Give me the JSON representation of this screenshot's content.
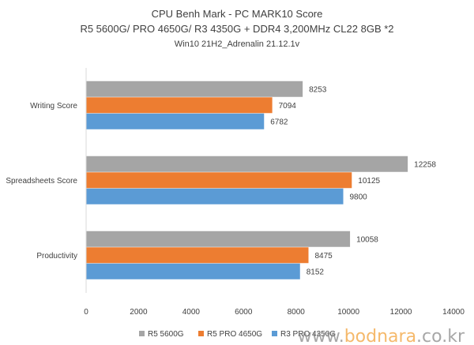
{
  "chart_data": {
    "type": "bar",
    "orientation": "horizontal",
    "title": "CPU Benh Mark - PC MARK10 Score",
    "subtitle": "R5 5600G/ PRO 4650G/ R3 4350G + DDR4 3,200MHz CL22 8GB *2",
    "subtitle2": "Win10 21H2_Adrenalin 21.12.1v",
    "categories": [
      "Writing Score",
      "Spreadsheets Score",
      "Productivity"
    ],
    "series": [
      {
        "name": "R5 5600G",
        "color": "#a5a5a5",
        "values": [
          8253,
          12258,
          10058
        ]
      },
      {
        "name": "R5 PRO 4650G",
        "color": "#ed7d31",
        "values": [
          7094,
          10125,
          8475
        ]
      },
      {
        "name": "R3 PRO 4350G",
        "color": "#5b9bd5",
        "values": [
          6782,
          9800,
          8152
        ]
      }
    ],
    "xlim": [
      0,
      14000
    ],
    "ticks": [
      0,
      2000,
      4000,
      6000,
      8000,
      10000,
      12000,
      14000
    ],
    "grid": false,
    "legend_position": "bottom"
  },
  "watermark": {
    "prefix": "www.",
    "brand": "bodnara",
    "suffix": ".co.kr"
  }
}
